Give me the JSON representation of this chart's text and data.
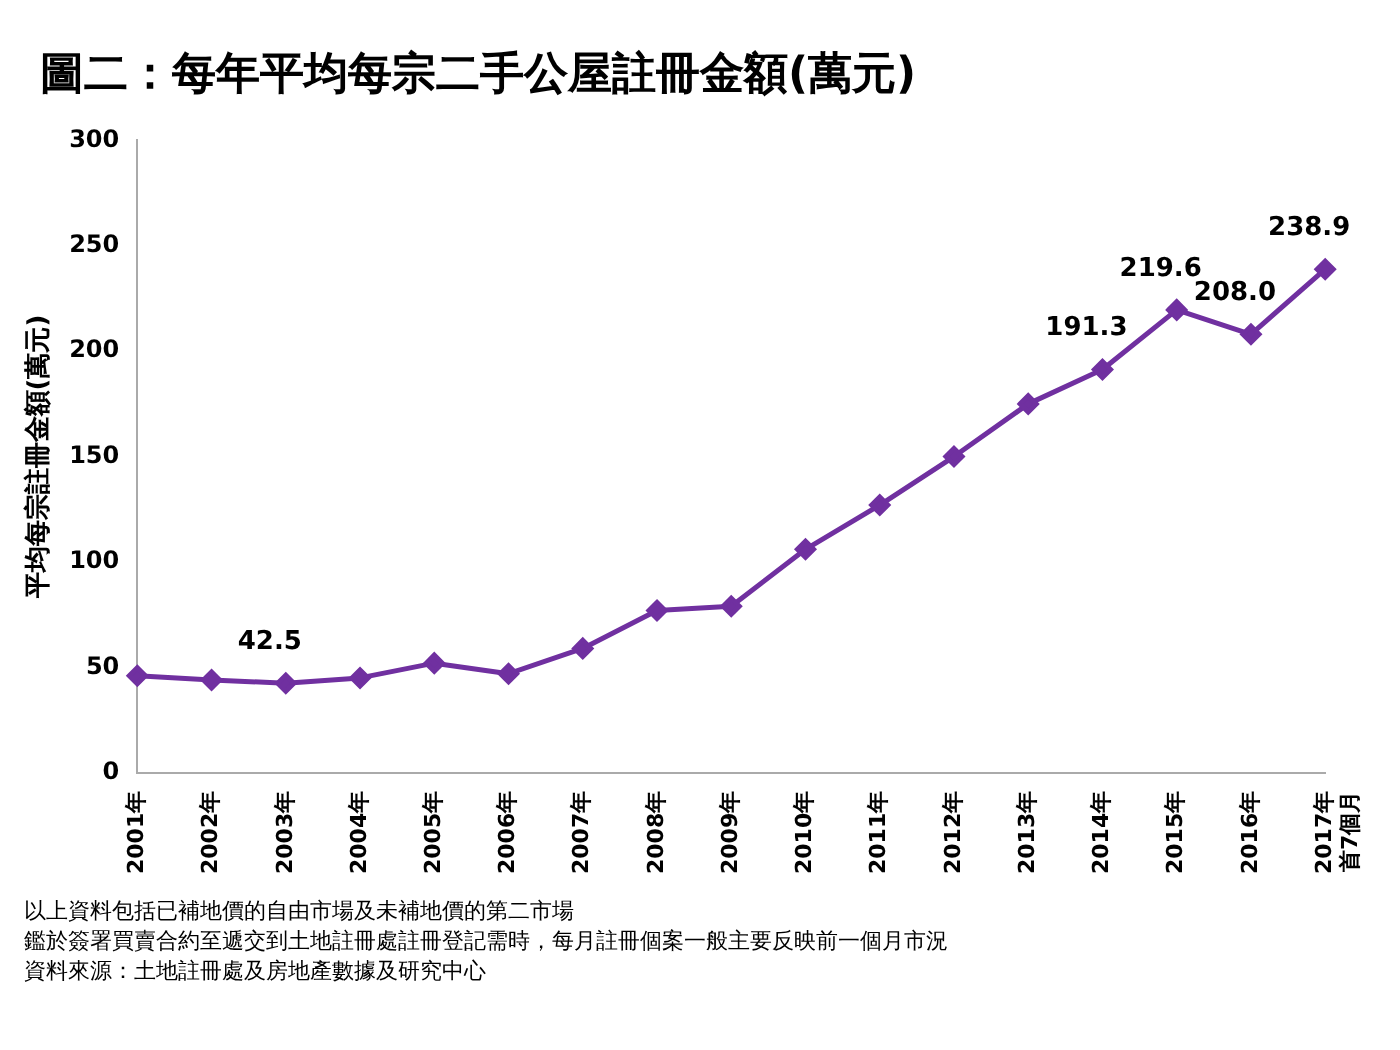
{
  "chart_data": {
    "type": "line",
    "title": "圖二：每年平均每宗二手公屋註冊金額(萬元)",
    "ylabel": "平均每宗註冊金額(萬元)",
    "categories": [
      "2001年",
      "2002年",
      "2003年",
      "2004年",
      "2005年",
      "2006年",
      "2007年",
      "2008年",
      "2009年",
      "2010年",
      "2011年",
      "2012年",
      "2013年",
      "2014年",
      "2015年",
      "2016年",
      "2017年首7個月"
    ],
    "series": [
      {
        "color": "#7030a0",
        "values": [
          46,
          44,
          42.5,
          45,
          52,
          47,
          59,
          77,
          79,
          106,
          127,
          150,
          175,
          191.3,
          219.6,
          208.0,
          238.9
        ],
        "value_labels": [
          null,
          null,
          "42.5",
          null,
          null,
          null,
          null,
          null,
          null,
          null,
          null,
          null,
          null,
          "191.3",
          "219.6",
          "208.0",
          "238.9"
        ]
      }
    ],
    "ylim": [
      0,
      300
    ],
    "yticks": [
      0,
      50,
      100,
      150,
      200,
      250,
      300
    ],
    "grid": false,
    "legend": false,
    "marker": "diamond",
    "line_style": "solid",
    "annotations": [
      "以上資料包括已補地價的自由市場及未補地價的第二市場",
      "鑑於簽署買賣合約至遞交到土地註冊處註冊登記需時，每月註冊個案一般主要反映前一個月市況",
      "資料來源：土地註冊處及房地產數據及研究中心"
    ]
  }
}
